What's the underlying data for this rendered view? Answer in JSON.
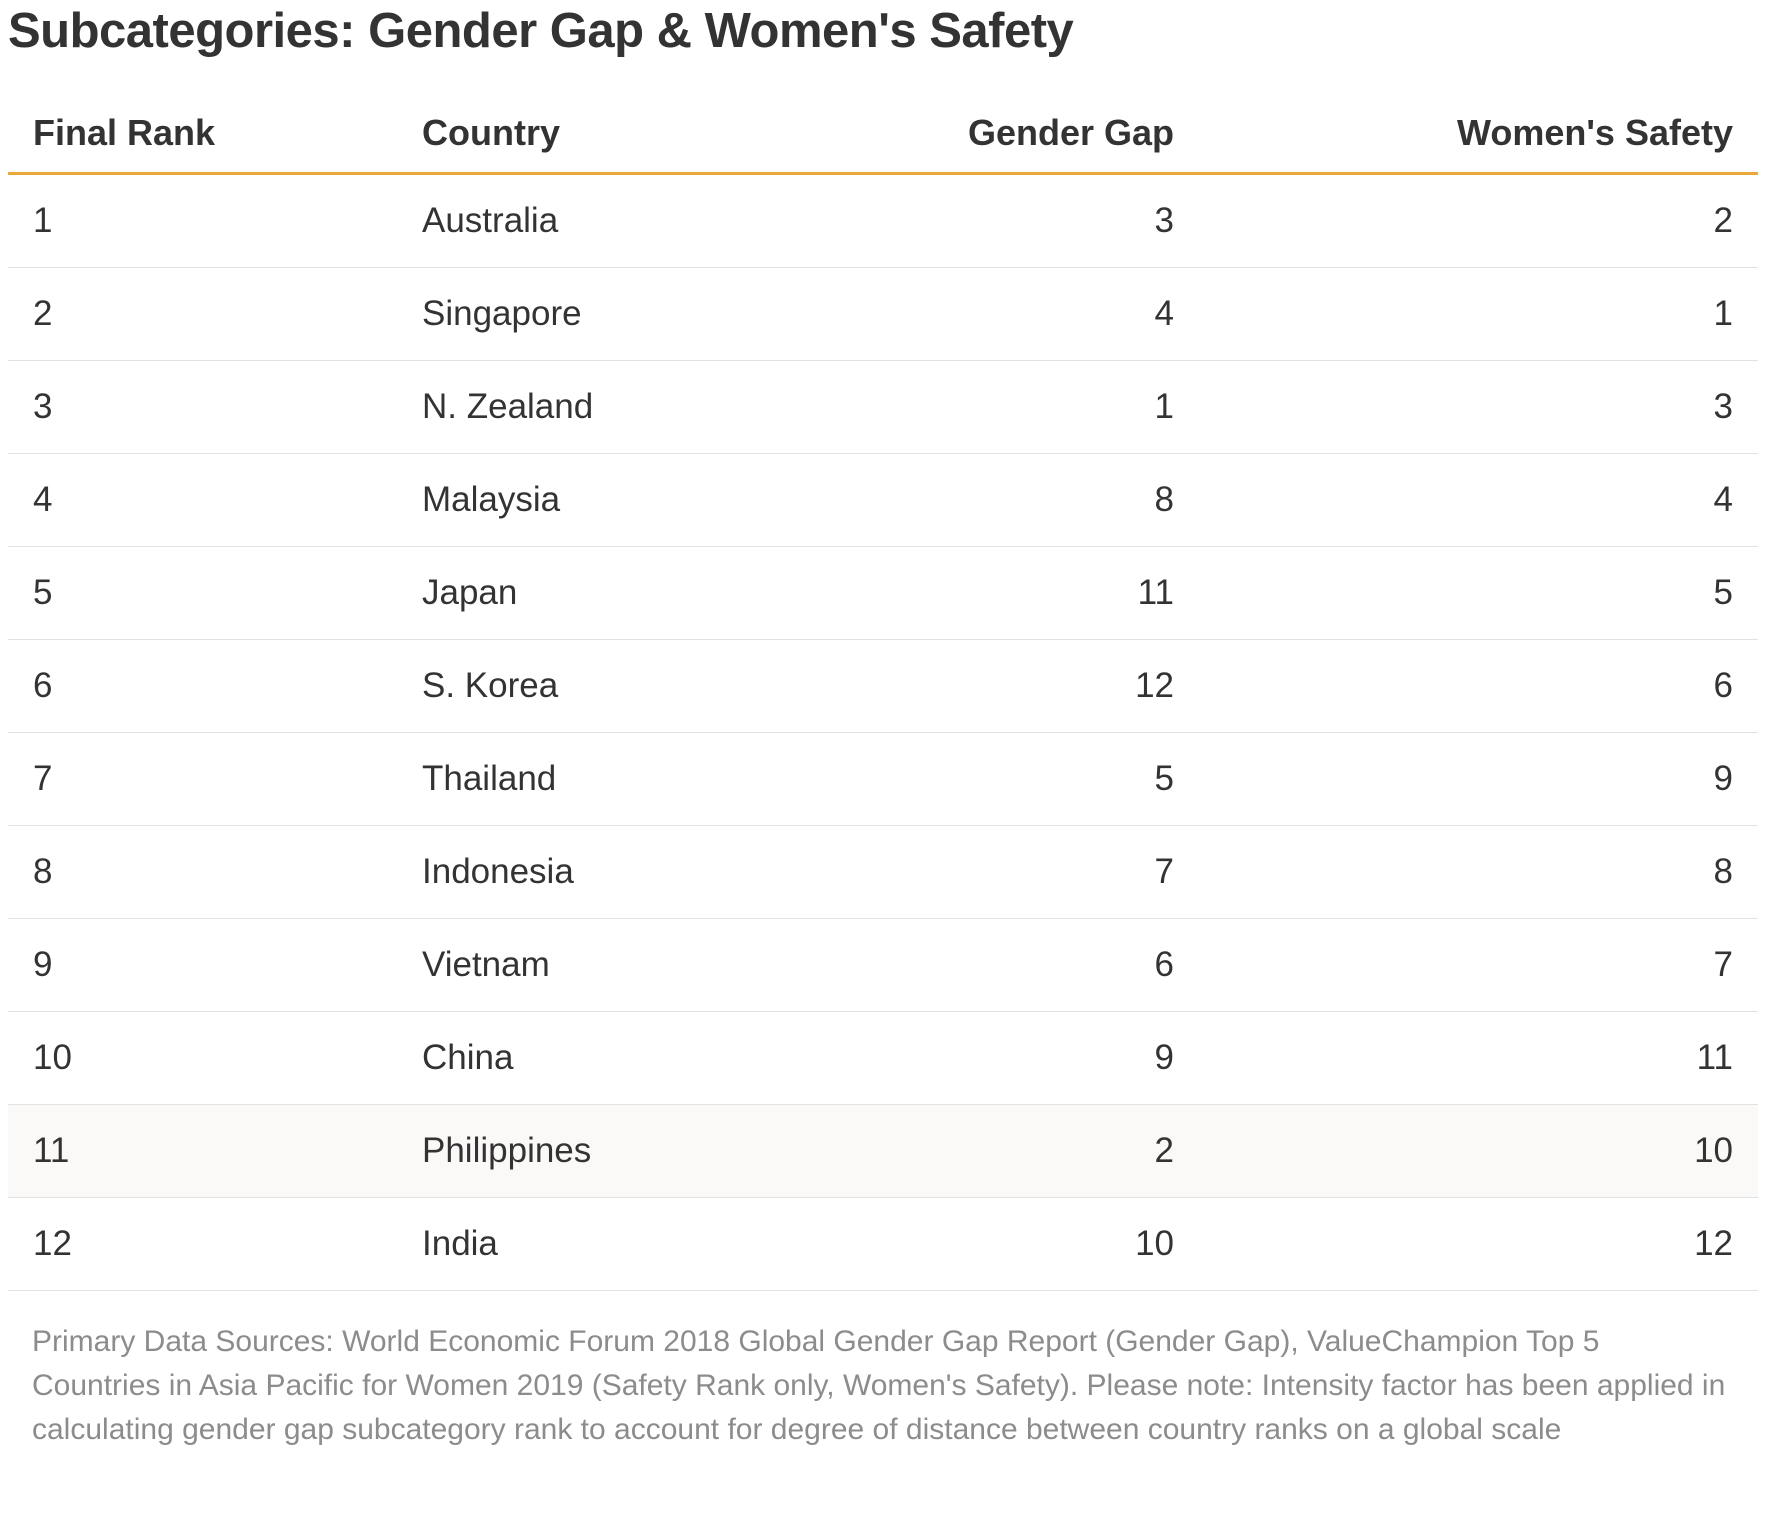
{
  "chart_data": {
    "type": "table",
    "title": "Subcategories: Gender Gap & Women's Safety",
    "columns": [
      "Final Rank",
      "Country",
      "Gender Gap",
      "Women's Safety"
    ],
    "rows": [
      {
        "rank": "1",
        "country": "Australia",
        "gender_gap": "3",
        "womens_safety": "2"
      },
      {
        "rank": "2",
        "country": "Singapore",
        "gender_gap": "4",
        "womens_safety": "1"
      },
      {
        "rank": "3",
        "country": "N. Zealand",
        "gender_gap": "1",
        "womens_safety": "3"
      },
      {
        "rank": "4",
        "country": "Malaysia",
        "gender_gap": "8",
        "womens_safety": "4"
      },
      {
        "rank": "5",
        "country": "Japan",
        "gender_gap": "11",
        "womens_safety": "5"
      },
      {
        "rank": "6",
        "country": "S. Korea",
        "gender_gap": "12",
        "womens_safety": "6"
      },
      {
        "rank": "7",
        "country": "Thailand",
        "gender_gap": "5",
        "womens_safety": "9"
      },
      {
        "rank": "8",
        "country": "Indonesia",
        "gender_gap": "7",
        "womens_safety": "8"
      },
      {
        "rank": "9",
        "country": "Vietnam",
        "gender_gap": "6",
        "womens_safety": "7"
      },
      {
        "rank": "10",
        "country": "China",
        "gender_gap": "9",
        "womens_safety": "11"
      },
      {
        "rank": "11",
        "country": "Philippines",
        "gender_gap": "2",
        "womens_safety": "10"
      },
      {
        "rank": "12",
        "country": "India",
        "gender_gap": "10",
        "womens_safety": "12"
      }
    ],
    "highlighted_row": 11,
    "footnote": "Primary Data Sources: World Economic Forum 2018 Global Gender Gap Report (Gender Gap), ValueChampion Top 5 Countries in Asia Pacific for Women 2019 (Safety Rank only, Women's Safety). Please note: Intensity factor has been applied in calculating gender gap subcategory rank to account for degree of distance between country ranks on a global scale"
  },
  "colors": {
    "header_rule": "#e8a83a",
    "row_divider": "#e2e2e2",
    "highlight_row_bg": "#faf9f7",
    "text": "#333333",
    "footnote_text": "#8c8c8c"
  }
}
